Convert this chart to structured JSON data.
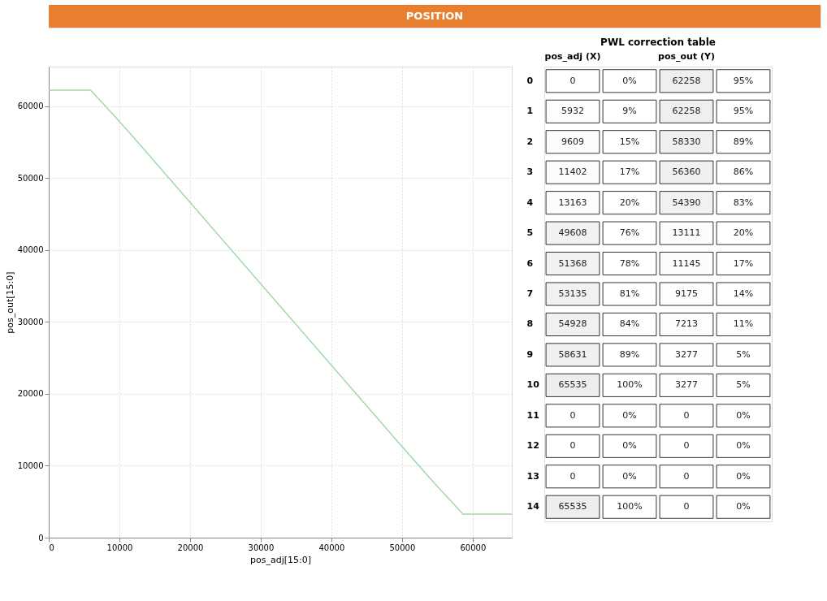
{
  "chart_data": [
    {
      "type": "line",
      "title": "POSITION",
      "xlabel": "pos_adj[15:0]",
      "ylabel": "pos_out[15:0]",
      "x": [
        0,
        5932,
        9609,
        11402,
        13163,
        49608,
        51368,
        53135,
        54928,
        58631,
        65535
      ],
      "series": [
        {
          "color": "#a3d9a5",
          "values": [
            62258,
            62258,
            58330,
            56360,
            54390,
            13111,
            11145,
            9175,
            7213,
            3277,
            3277
          ]
        }
      ],
      "xlim": [
        0,
        65535
      ],
      "xticks": [
        0,
        10000,
        20000,
        30000,
        40000,
        50000,
        60000
      ],
      "ylim": [
        0,
        65535
      ],
      "yticks": [
        0,
        10000,
        20000,
        30000,
        40000,
        50000,
        60000
      ],
      "grid": true,
      "line_style": "solid",
      "marker": "none",
      "legend": false
    },
    {
      "type": "heatmap",
      "title": "PWL correction table",
      "categories": [
        "pos_adj (X)",
        null,
        "pos_out (Y)",
        null
      ],
      "y_categories": [
        "0",
        "1",
        "2",
        "3",
        "4",
        "5",
        "6",
        "7",
        "8",
        "9",
        "10",
        "11",
        "12",
        "13",
        "14"
      ],
      "cells": [
        [
          0,
          0,
          62258,
          95
        ],
        [
          5932,
          9,
          62258,
          95
        ],
        [
          9609,
          15,
          58330,
          89
        ],
        [
          11402,
          17,
          56360,
          86
        ],
        [
          13163,
          20,
          54390,
          83
        ],
        [
          49608,
          76,
          13111,
          20
        ],
        [
          51368,
          78,
          11145,
          17
        ],
        [
          53135,
          81,
          9175,
          14
        ],
        [
          54928,
          84,
          7213,
          11
        ],
        [
          58631,
          89,
          3277,
          5
        ],
        [
          65535,
          100,
          3277,
          5
        ],
        [
          0,
          0,
          0,
          0
        ],
        [
          0,
          0,
          0,
          0
        ],
        [
          0,
          0,
          0,
          0
        ],
        [
          65535,
          100,
          0,
          0
        ]
      ],
      "cell_labels": [
        [
          "0",
          "0%",
          "62258",
          "95%"
        ],
        [
          "5932",
          "9%",
          "62258",
          "95%"
        ],
        [
          "9609",
          "15%",
          "58330",
          "89%"
        ],
        [
          "11402",
          "17%",
          "56360",
          "86%"
        ],
        [
          "13163",
          "20%",
          "54390",
          "83%"
        ],
        [
          "49608",
          "76%",
          "13111",
          "20%"
        ],
        [
          "51368",
          "78%",
          "11145",
          "17%"
        ],
        [
          "53135",
          "81%",
          "9175",
          "14%"
        ],
        [
          "54928",
          "84%",
          "7213",
          "11%"
        ],
        [
          "58631",
          "89%",
          "3277",
          "5%"
        ],
        [
          "65535",
          "100%",
          "3277",
          "5%"
        ],
        [
          "0",
          "0%",
          "0",
          "0%"
        ],
        [
          "0",
          "0%",
          "0",
          "0%"
        ],
        [
          "0",
          "0%",
          "0",
          "0%"
        ],
        [
          "65535",
          "100%",
          "0",
          "0%"
        ]
      ]
    }
  ]
}
